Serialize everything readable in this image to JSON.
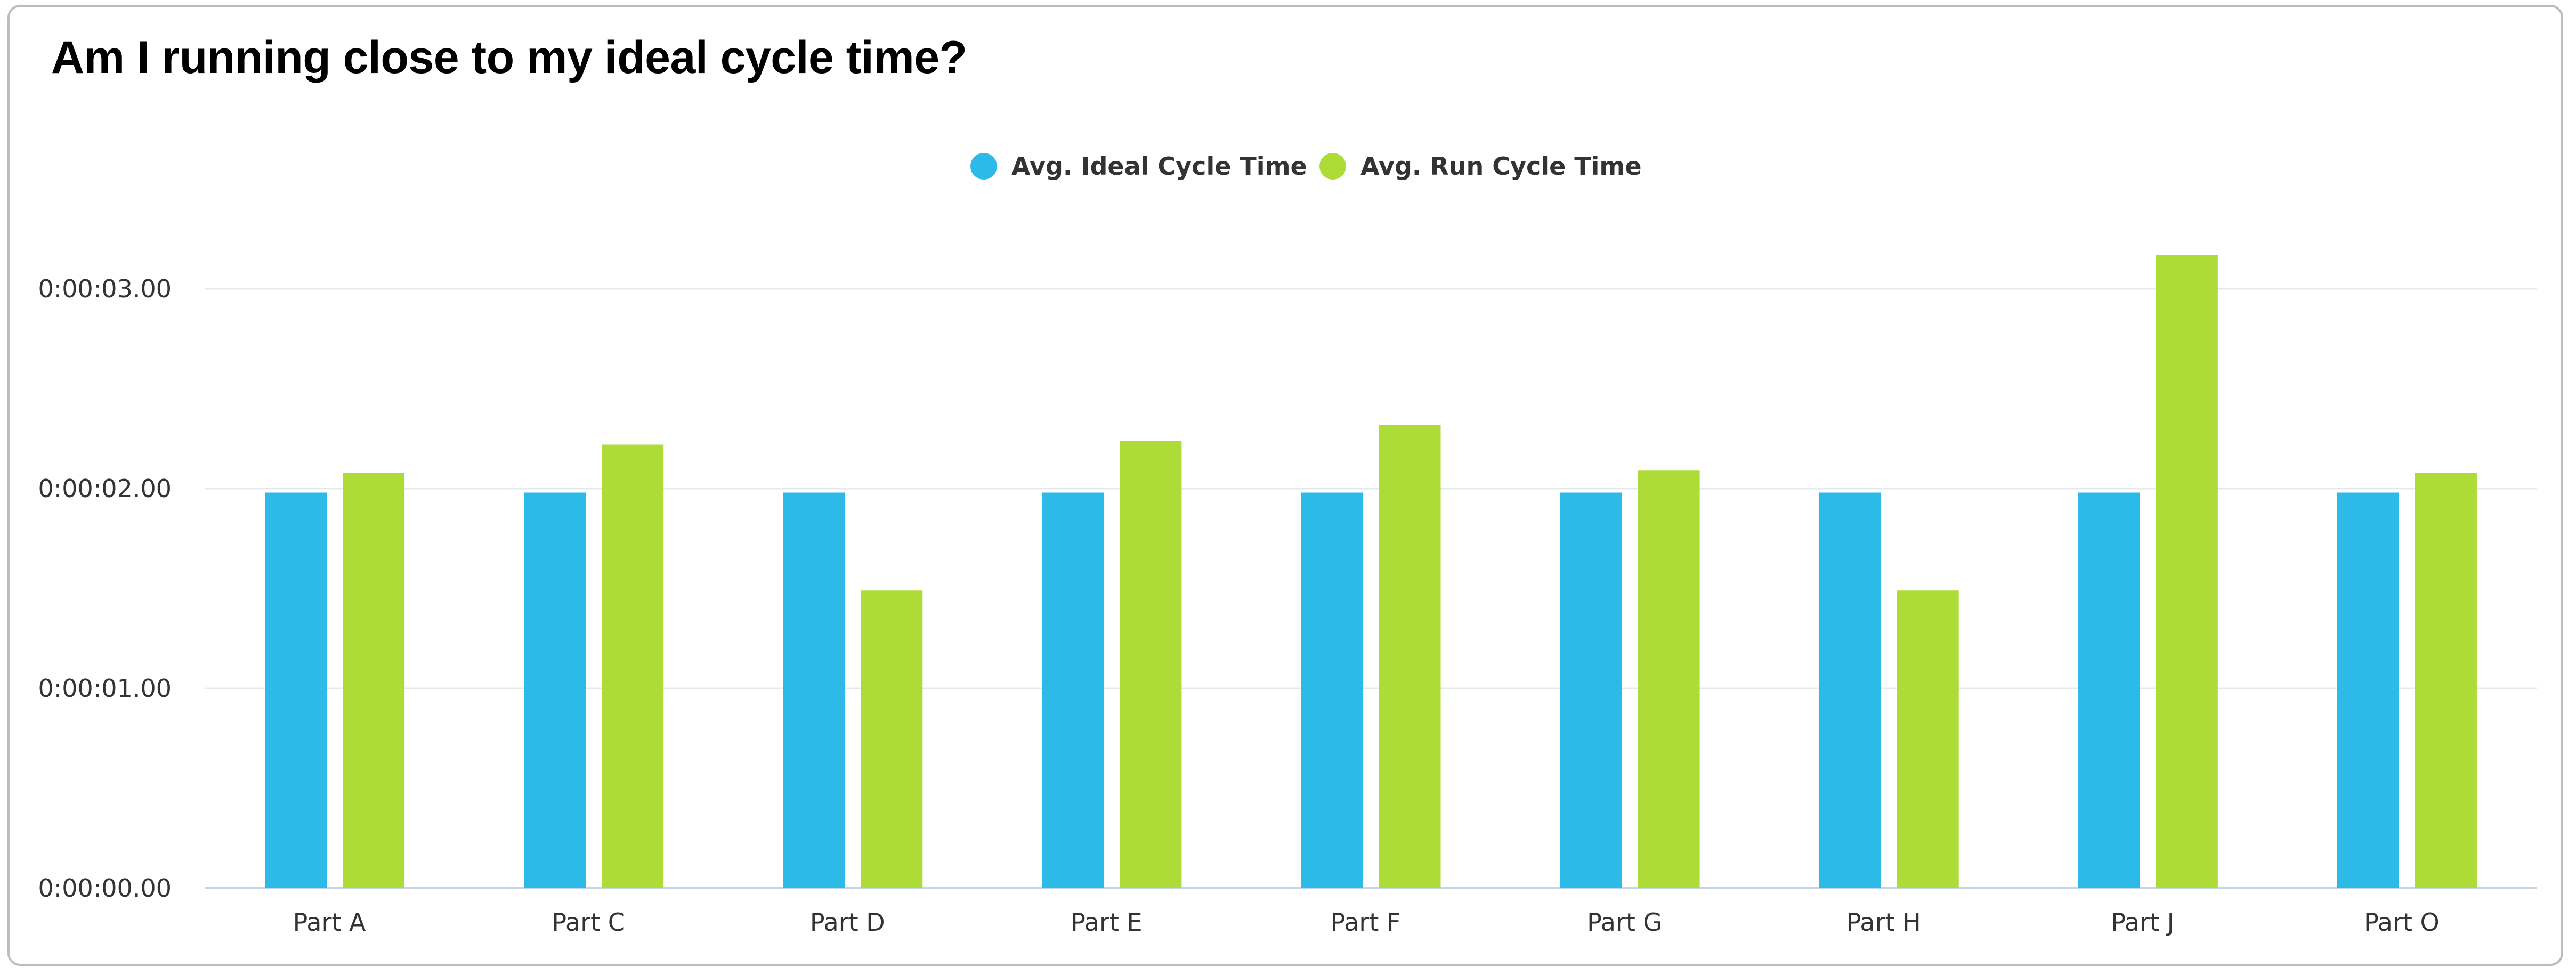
{
  "chart_data": {
    "type": "bar",
    "title": "Am I running close to my ideal cycle time?",
    "categories": [
      "Part A",
      "Part C",
      "Part D",
      "Part E",
      "Part F",
      "Part G",
      "Part H",
      "Part J",
      "Part O"
    ],
    "series": [
      {
        "name": "Avg. Ideal Cycle Time",
        "color": "#2cbbe9",
        "values": [
          1.98,
          1.98,
          1.98,
          1.98,
          1.98,
          1.98,
          1.98,
          1.98,
          1.98
        ]
      },
      {
        "name": "Avg. Run Cycle Time",
        "color": "#addc39",
        "values": [
          2.08,
          2.22,
          1.49,
          2.24,
          2.32,
          2.09,
          1.49,
          3.17,
          2.08
        ]
      }
    ],
    "ylim": [
      0,
      3.0
    ],
    "yticks": [
      {
        "value": 0,
        "label": "0:00:00.00"
      },
      {
        "value": 1,
        "label": "0:00:01.00"
      },
      {
        "value": 2,
        "label": "0:00:02.00"
      },
      {
        "value": 3,
        "label": "0:00:03.00"
      }
    ],
    "xlabel": "",
    "ylabel": "",
    "legend": "top-center",
    "grid": true
  }
}
